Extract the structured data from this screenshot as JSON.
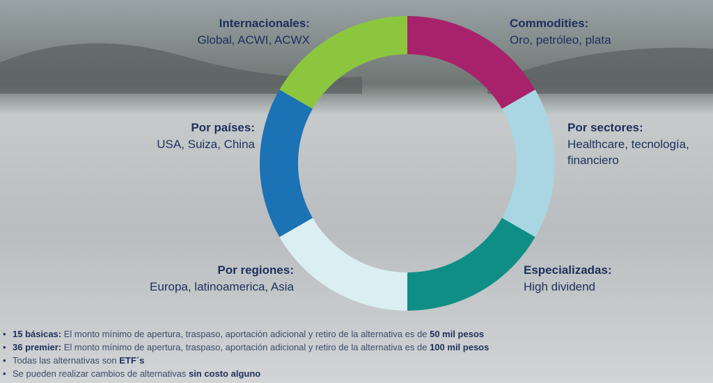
{
  "segments": [
    {
      "title": "Commodities:",
      "text": [
        "Oro, petróleo, plata"
      ],
      "color": "#a8226b"
    },
    {
      "title": "Por sectores:",
      "text": [
        "Healthcare, tecnología,",
        "financiero"
      ],
      "color": "#a9d6e2"
    },
    {
      "title": "Especializadas:",
      "text": [
        "High dividend"
      ],
      "color": "#0f8e86"
    },
    {
      "title": "Por regiones:",
      "text": [
        "Europa, latinoamerica, Asia"
      ],
      "color": "#dbeef2"
    },
    {
      "title": "Por países:",
      "text": [
        "USA, Suiza, China"
      ],
      "color": "#1b72b5"
    },
    {
      "title": "Internacionales:",
      "text": [
        "Global, ACWI, ACWX"
      ],
      "color": "#8cc63f"
    }
  ],
  "notes": [
    [
      {
        "text": "15 básicas:",
        "bold": true
      },
      {
        "text": "El monto mínimo de apertura, traspaso, aportación adicional y retiro de la alternativa es de",
        "bold": false
      },
      {
        "text": "50 mil pesos",
        "bold": true
      }
    ],
    [
      {
        "text": "36 premier:",
        "bold": true
      },
      {
        "text": "El monto mínimo de apertura, traspaso, aportación adicional y retiro de la alternativa es de",
        "bold": false
      },
      {
        "text": "100 mil pesos",
        "bold": true
      }
    ],
    [
      {
        "text": "Todas las alternativas son",
        "bold": false
      },
      {
        "text": "ETF´s",
        "bold": true
      }
    ],
    [
      {
        "text": "Se pueden realizar cambios de alternativas",
        "bold": false
      },
      {
        "text": "sin costo alguno",
        "bold": true
      }
    ]
  ]
}
